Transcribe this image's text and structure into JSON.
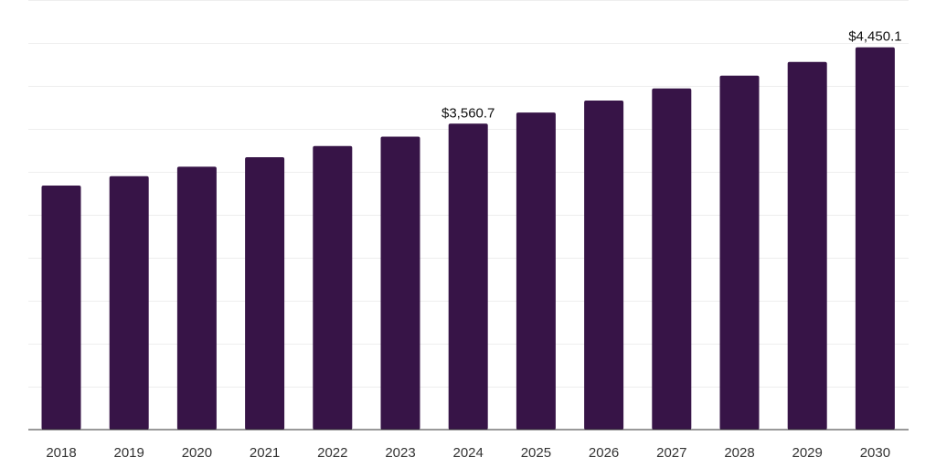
{
  "chart_data": {
    "type": "bar",
    "categories": [
      "2018",
      "2019",
      "2020",
      "2021",
      "2022",
      "2023",
      "2024",
      "2025",
      "2026",
      "2027",
      "2028",
      "2029",
      "2030"
    ],
    "values": [
      2840.0,
      2950.0,
      3060.0,
      3170.0,
      3300.0,
      3410.0,
      3560.7,
      3690.0,
      3830.0,
      3970.0,
      4120.0,
      4280.0,
      4450.1
    ],
    "data_labels": [
      {
        "category": "2024",
        "text": "$3,560.7"
      },
      {
        "category": "2030",
        "text": "$4,450.1"
      }
    ],
    "ylim": [
      0,
      5000
    ],
    "grid": true,
    "bar_color": "#371447",
    "grid_color": "#eeeeee",
    "axis_color": "#333333"
  }
}
